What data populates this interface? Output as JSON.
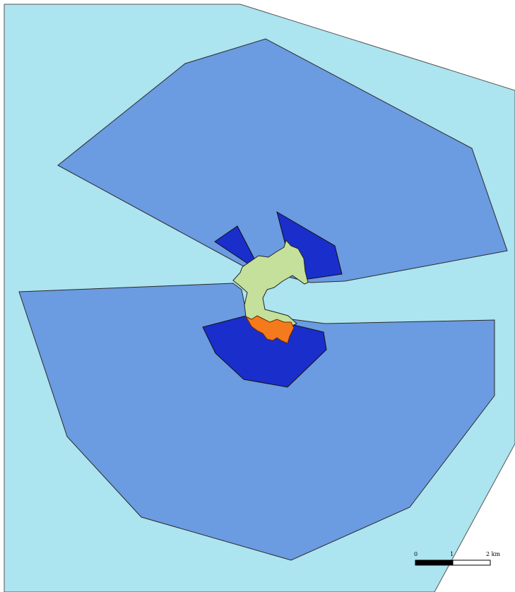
{
  "map": {
    "colors": {
      "background": "#ffffff",
      "outer_zone": "#ace4f0",
      "mid_zone": "#6b9be0",
      "inner_zone": "#1a2ecc",
      "land": "#c4e09a",
      "highlight": "#f57a1c",
      "outline": "#3a3a3a"
    },
    "scale_bar": {
      "labels": [
        "0",
        "1",
        "2 km"
      ]
    }
  }
}
